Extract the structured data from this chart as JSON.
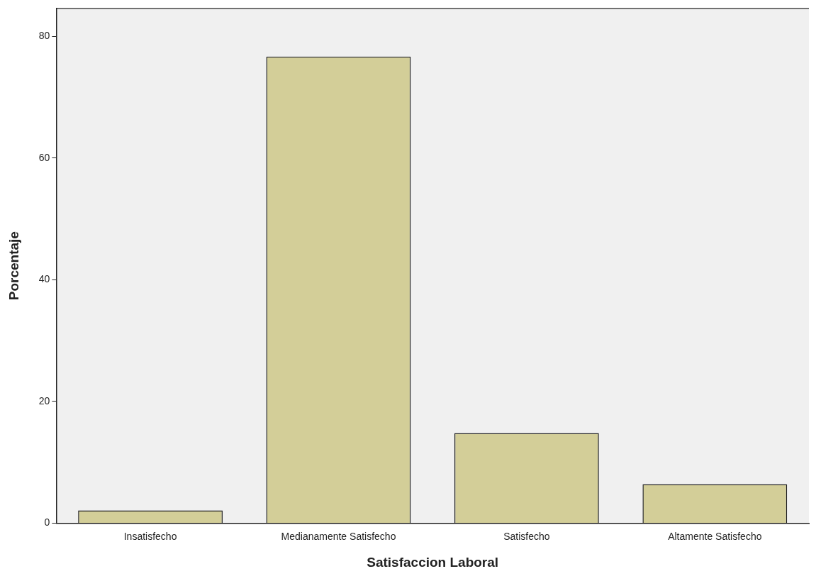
{
  "chart_data": {
    "type": "bar",
    "xlabel": "Satisfaccion Laboral",
    "ylabel": "Porcentaje",
    "categories": [
      "Insatisfecho",
      "Medianamente Satisfecho",
      "Satisfecho",
      "Altamente Satisfecho"
    ],
    "values": [
      2.1,
      76.7,
      14.8,
      6.4
    ],
    "color": "#d3ce98",
    "ylim": [
      0,
      84.6
    ],
    "yticks": [
      0,
      20,
      40,
      60,
      80
    ],
    "grid": false,
    "legend": false
  }
}
